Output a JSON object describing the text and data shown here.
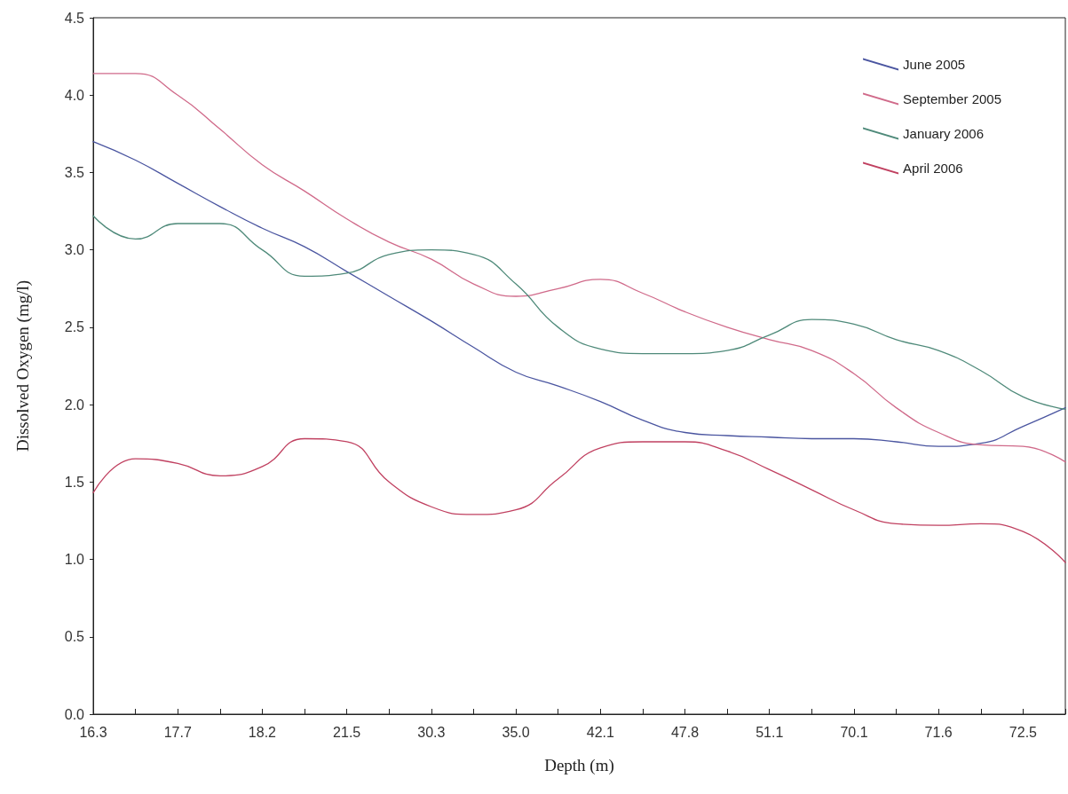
{
  "chart_data": {
    "type": "line",
    "xlabel": "Depth (m)",
    "ylabel": "Dissolved Oxygen (mg/l)",
    "categories": [
      "16.3",
      null,
      "17.7",
      null,
      "18.2",
      null,
      "21.5",
      null,
      "30.3",
      null,
      "35.0",
      null,
      "42.1",
      null,
      "47.8",
      null,
      "51.1",
      null,
      "70.1",
      null,
      "71.6",
      null,
      "72.5",
      null
    ],
    "ylim": [
      0,
      4.5
    ],
    "yticks": [
      {
        "value": 0,
        "label": "0.0"
      },
      0.5,
      {
        "value": 1,
        "label": "1.0"
      },
      1.5,
      {
        "value": 2,
        "label": "2.0"
      },
      2.5,
      {
        "value": 3,
        "label": "3.0"
      },
      3.5,
      {
        "value": 4,
        "label": "4.0"
      },
      4.5
    ],
    "grid": false,
    "legend": "top right",
    "marker": "none",
    "line_style": "solid",
    "series": [
      {
        "name": "June 2005",
        "color": "#4a55a0",
        "values": [
          3.7,
          3.58,
          3.43,
          3.28,
          3.14,
          3.02,
          2.86,
          2.7,
          2.54,
          2.37,
          2.21,
          2.12,
          2.02,
          1.9,
          1.82,
          1.8,
          1.79,
          1.78,
          1.78,
          1.76,
          1.73,
          1.75,
          1.86,
          1.98
        ]
      },
      {
        "name": "September 2005",
        "color": "#d06a8a",
        "values": [
          4.14,
          4.14,
          4.0,
          3.78,
          3.55,
          3.38,
          3.2,
          3.05,
          2.94,
          2.78,
          2.7,
          2.75,
          2.81,
          2.72,
          2.6,
          2.5,
          2.42,
          2.35,
          2.2,
          1.98,
          1.82,
          1.74,
          1.73,
          1.63
        ]
      },
      {
        "name": "January 2006",
        "color": "#4f8a7a",
        "values": [
          3.22,
          3.07,
          3.17,
          3.17,
          3.0,
          2.83,
          2.85,
          2.97,
          3.0,
          2.97,
          2.78,
          2.5,
          2.36,
          2.33,
          2.33,
          2.35,
          2.45,
          2.55,
          2.52,
          2.42,
          2.35,
          2.22,
          2.05,
          1.97
        ]
      },
      {
        "name": "April 2006",
        "color": "#c04060",
        "values": [
          1.43,
          1.65,
          1.62,
          1.54,
          1.6,
          1.78,
          1.76,
          1.5,
          1.34,
          1.29,
          1.32,
          1.52,
          1.72,
          1.76,
          1.76,
          1.7,
          1.58,
          1.45,
          1.32,
          1.23,
          1.22,
          1.23,
          1.18,
          0.98
        ]
      }
    ]
  }
}
